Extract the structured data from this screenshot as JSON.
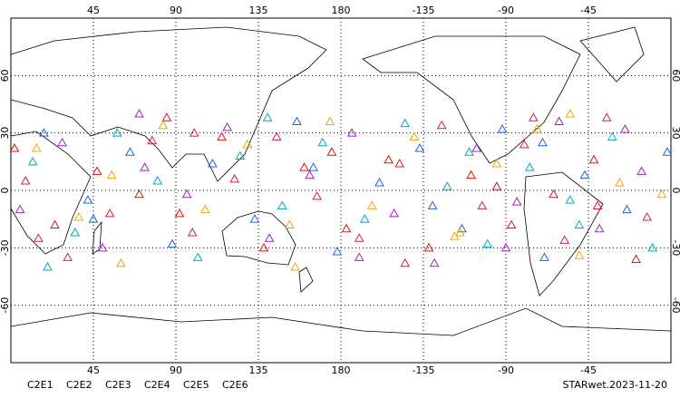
{
  "chart_data": {
    "type": "scatter",
    "title": "STARwet.2023-11-20",
    "xlim": [
      0,
      360
    ],
    "ylim": [
      -90,
      90
    ],
    "xticks": [
      45,
      90,
      135,
      180,
      {
        "value": 225,
        "label": "-135"
      },
      {
        "value": 270,
        "label": "-90"
      },
      {
        "value": 315,
        "label": "-45"
      }
    ],
    "yticks": [
      -60,
      -30,
      0,
      30,
      60
    ],
    "grid": true,
    "series": [
      {
        "name": "C2E1",
        "color": "#00a8c8",
        "x": [
          12,
          35,
          58,
          80,
          102,
          125,
          148,
          170,
          193,
          215,
          238,
          260,
          283,
          305,
          328,
          350,
          20,
          140,
          250,
          310
        ],
        "y": [
          15,
          -22,
          30,
          5,
          -35,
          18,
          -8,
          25,
          -15,
          35,
          2,
          -28,
          12,
          -5,
          28,
          -30,
          -40,
          38,
          20,
          -18
        ]
      },
      {
        "name": "C2E2",
        "color": "#a020c0",
        "x": [
          5,
          28,
          50,
          73,
          96,
          118,
          141,
          163,
          186,
          209,
          231,
          254,
          276,
          299,
          321,
          344,
          70,
          190,
          270,
          335
        ],
        "y": [
          -10,
          25,
          -30,
          12,
          -2,
          33,
          -25,
          8,
          30,
          -12,
          -38,
          22,
          -6,
          36,
          -20,
          10,
          40,
          -35,
          -30,
          32
        ]
      },
      {
        "name": "C2E3",
        "color": "#2060e0",
        "x": [
          18,
          42,
          65,
          88,
          110,
          133,
          156,
          178,
          201,
          223,
          246,
          268,
          291,
          313,
          336,
          358,
          45,
          165,
          230,
          290
        ],
        "y": [
          30,
          -5,
          20,
          -28,
          14,
          -15,
          36,
          -32,
          4,
          22,
          -20,
          32,
          -35,
          8,
          -10,
          20,
          -15,
          12,
          -8,
          25
        ]
      },
      {
        "name": "C2E4",
        "color": "#d0204a",
        "x": [
          8,
          31,
          54,
          77,
          99,
          122,
          145,
          167,
          190,
          212,
          235,
          257,
          280,
          302,
          325,
          347,
          100,
          215,
          285,
          15
        ],
        "y": [
          5,
          -35,
          -12,
          26,
          -22,
          6,
          28,
          -3,
          -25,
          14,
          34,
          -8,
          24,
          -26,
          38,
          -14,
          30,
          -38,
          38,
          -25
        ]
      },
      {
        "name": "C2E5",
        "color": "#e01010",
        "x": [
          24,
          47,
          70,
          92,
          115,
          138,
          160,
          183,
          206,
          228,
          251,
          273,
          296,
          318,
          341,
          2,
          85,
          175,
          265,
          320
        ],
        "y": [
          -18,
          10,
          -2,
          -12,
          28,
          -30,
          12,
          -20,
          16,
          -30,
          8,
          -18,
          -2,
          16,
          -36,
          22,
          38,
          20,
          2,
          -8
        ]
      },
      {
        "name": "C2E6",
        "color": "#f0a800",
        "x": [
          14,
          37,
          60,
          83,
          106,
          129,
          152,
          174,
          197,
          220,
          242,
          265,
          287,
          310,
          332,
          355,
          55,
          155,
          245,
          305
        ],
        "y": [
          22,
          -14,
          -38,
          34,
          -10,
          24,
          -18,
          36,
          -8,
          28,
          -24,
          14,
          32,
          -34,
          4,
          -2,
          8,
          -40,
          -22,
          40
        ]
      }
    ]
  }
}
